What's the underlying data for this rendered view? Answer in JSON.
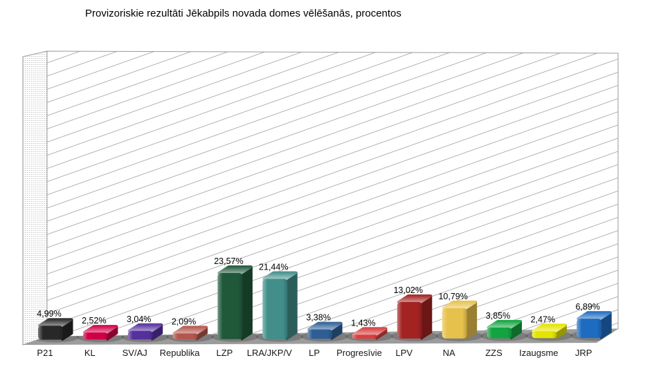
{
  "chart_data": {
    "type": "bar",
    "style": "3d-bar-rounded",
    "title": "Provizoriskie rezultāti Jēkabpils novada domes vēlēšanās, procentos",
    "categories": [
      "P21",
      "KL",
      "SV/AJ",
      "Republika",
      "LZP",
      "LRA/JKP/V",
      "LP",
      "Progresīvie",
      "LPV",
      "NA",
      "ZZS",
      "Izaugsme",
      "JRP"
    ],
    "values": [
      4.99,
      2.52,
      3.04,
      2.09,
      23.57,
      21.44,
      3.38,
      1.43,
      13.02,
      10.79,
      3.85,
      2.47,
      6.89
    ],
    "value_labels": [
      "4,99%",
      "2,52%",
      "3,04%",
      "2,09%",
      "23,57%",
      "21,44%",
      "3,38%",
      "1,43%",
      "13,02%",
      "10,79%",
      "3,85%",
      "2,47%",
      "6,89%"
    ],
    "bar_colors": [
      "#282828",
      "#cf0045",
      "#55309d",
      "#b5564c",
      "#20583a",
      "#418e8a",
      "#2d5f95",
      "#d84040",
      "#a32222",
      "#e6c14c",
      "#12a440",
      "#e4e400",
      "#1e6cc0"
    ],
    "xlabel": "",
    "ylabel": "",
    "ylim": [
      0,
      100
    ],
    "legend": "none",
    "axis_tick_labels_visible": false,
    "decimal_separator": ",",
    "wall": {
      "back_wall_pattern": "diagonal-hatch",
      "side_wall_pattern": "fine-dots",
      "hatch_line_color": "#b2b2b2",
      "dot_color": "#c6c6c6",
      "floor_color": "#9c9c9c",
      "edge_color": "#9a9a9a",
      "background": "#ffffff"
    }
  }
}
